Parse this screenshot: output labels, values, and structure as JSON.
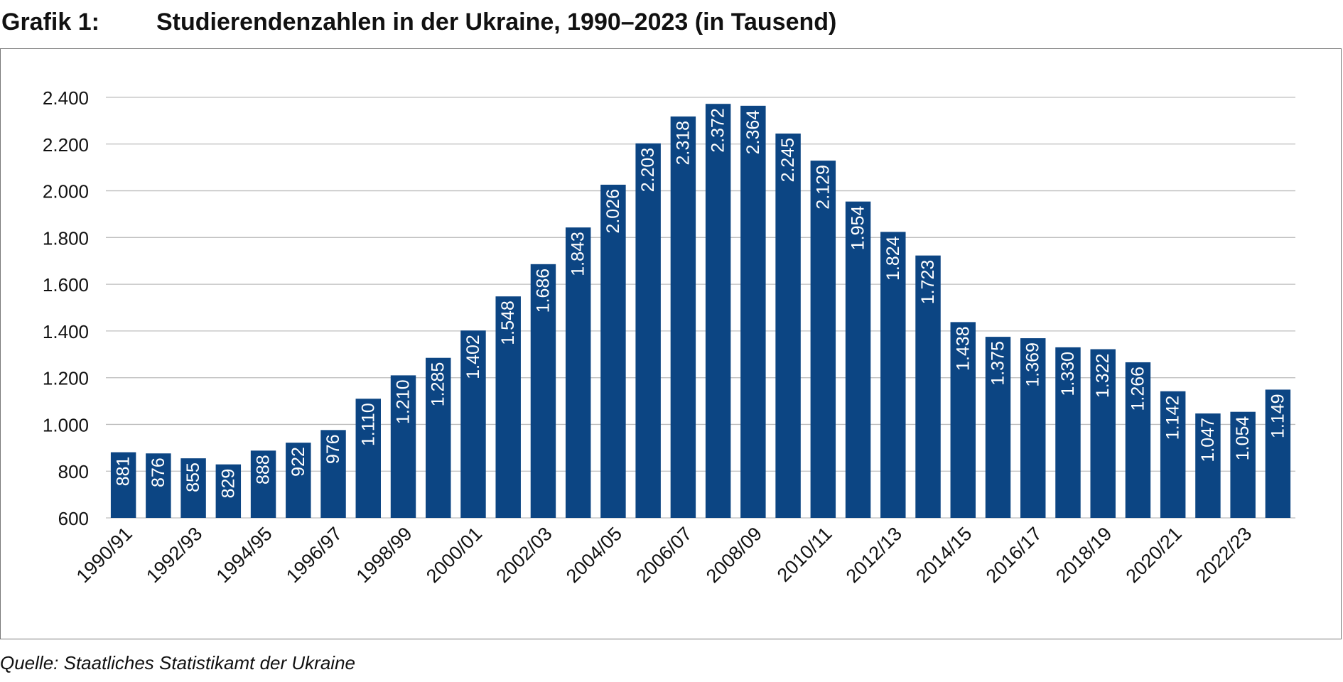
{
  "figure": {
    "label": "Grafik 1:",
    "title": "Studierendenzahlen in der Ukraine, 1990–2023 (in Tausend)",
    "source": "Quelle: Staatliches Statistikamt der Ukraine"
  },
  "chart_data": {
    "type": "bar",
    "title": "Studierendenzahlen in der Ukraine, 1990–2023 (in Tausend)",
    "xlabel": "",
    "ylabel": "",
    "ylim": [
      600,
      2400
    ],
    "yticks": [
      600,
      800,
      1000,
      1200,
      1400,
      1600,
      1800,
      2000,
      2200,
      2400
    ],
    "ytick_labels": [
      "600",
      "800",
      "1.000",
      "1.200",
      "1.400",
      "1.600",
      "1.800",
      "2.000",
      "2.200",
      "2.400"
    ],
    "categories": [
      "1990/91",
      "1991/92",
      "1992/93",
      "1993/94",
      "1994/95",
      "1995/96",
      "1996/97",
      "1997/98",
      "1998/99",
      "1999/00",
      "2000/01",
      "2001/02",
      "2002/03",
      "2003/04",
      "2004/05",
      "2005/06",
      "2006/07",
      "2007/08",
      "2008/09",
      "2009/10",
      "2010/11",
      "2011/12",
      "2012/13",
      "2013/14",
      "2014/15",
      "2015/16",
      "2016/17",
      "2017/18",
      "2018/19",
      "2019/20",
      "2020/21",
      "2021/22",
      "2022/23",
      "2023/24"
    ],
    "xtick_labels": [
      "1990/91",
      "",
      "1992/93",
      "",
      "1994/95",
      "",
      "1996/97",
      "",
      "1998/99",
      "",
      "2000/01",
      "",
      "2002/03",
      "",
      "2004/05",
      "",
      "2006/07",
      "",
      "2008/09",
      "",
      "2010/11",
      "",
      "2012/13",
      "",
      "2014/15",
      "",
      "2016/17",
      "",
      "2018/19",
      "",
      "2020/21",
      "",
      "2022/23",
      ""
    ],
    "values": [
      881,
      876,
      855,
      829,
      888,
      922,
      976,
      1110,
      1210,
      1285,
      1402,
      1548,
      1686,
      1843,
      2026,
      2203,
      2318,
      2372,
      2364,
      2245,
      2129,
      1954,
      1824,
      1723,
      1438,
      1375,
      1369,
      1330,
      1322,
      1266,
      1142,
      1047,
      1054,
      1149
    ],
    "data_labels": [
      "881",
      "876",
      "855",
      "829",
      "888",
      "922",
      "976",
      "1.110",
      "1.210",
      "1.285",
      "1.402",
      "1.548",
      "1.686",
      "1.843",
      "2.026",
      "2.203",
      "2.318",
      "2.372",
      "2.364",
      "2.245",
      "2.129",
      "1.954",
      "1.824",
      "1.723",
      "1.438",
      "1.375",
      "1.369",
      "1.330",
      "1.322",
      "1.266",
      "1.142",
      "1.047",
      "1.054",
      "1.149"
    ],
    "grid": true,
    "legend": "none",
    "colors": {
      "bar": "#0c4583",
      "grid": "#bfbfbf",
      "data_label": "#ffffff",
      "axis_text": "#111111"
    }
  }
}
